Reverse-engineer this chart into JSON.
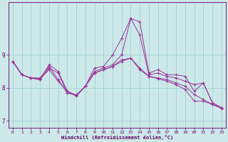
{
  "xlabel": "Windchill (Refroidissement éolien,°C)",
  "background_color": "#cce8e8",
  "grid_color": "#99cccc",
  "line_color": "#993399",
  "xlim": [
    -0.5,
    23.5
  ],
  "ylim": [
    6.8,
    10.6
  ],
  "yticks": [
    7,
    8,
    9
  ],
  "xticks": [
    0,
    1,
    2,
    3,
    4,
    5,
    6,
    7,
    8,
    9,
    10,
    11,
    12,
    13,
    14,
    15,
    16,
    17,
    18,
    19,
    20,
    21,
    22,
    23
  ],
  "series": [
    [
      8.8,
      8.4,
      8.3,
      8.25,
      8.7,
      8.5,
      7.9,
      7.75,
      8.05,
      8.6,
      8.65,
      9.0,
      9.5,
      10.1,
      10.0,
      8.45,
      8.55,
      8.4,
      8.4,
      8.35,
      7.9,
      8.15,
      7.55,
      7.4
    ],
    [
      8.8,
      8.4,
      8.3,
      8.25,
      8.6,
      8.45,
      7.85,
      7.78,
      8.05,
      8.5,
      8.6,
      8.7,
      9.0,
      10.1,
      9.6,
      8.4,
      8.45,
      8.35,
      8.3,
      8.2,
      8.1,
      8.15,
      7.55,
      7.4
    ],
    [
      8.8,
      8.4,
      8.3,
      8.3,
      8.65,
      8.25,
      7.85,
      7.78,
      8.05,
      8.45,
      8.55,
      8.65,
      8.85,
      8.9,
      8.6,
      8.35,
      8.3,
      8.25,
      8.15,
      8.05,
      7.8,
      7.65,
      7.5,
      7.4
    ],
    [
      8.8,
      8.4,
      8.3,
      8.28,
      8.55,
      8.2,
      7.9,
      7.78,
      8.05,
      8.45,
      8.55,
      8.65,
      8.8,
      8.9,
      8.55,
      8.35,
      8.28,
      8.2,
      8.1,
      7.95,
      7.6,
      7.6,
      7.5,
      7.38
    ]
  ],
  "spine_color": "#660066",
  "tick_color": "#660066",
  "label_color": "#660066"
}
